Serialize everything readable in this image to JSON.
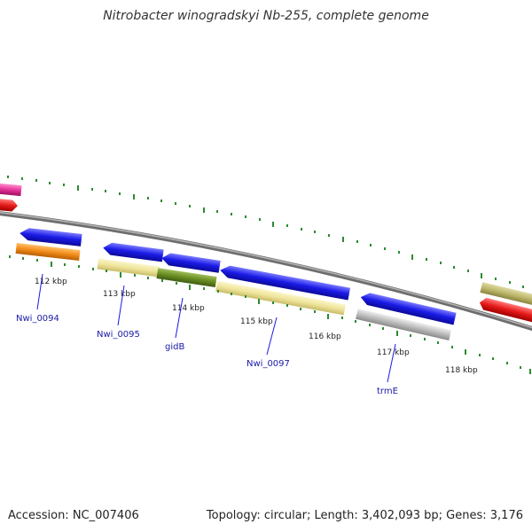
{
  "title": "Nitrobacter winogradskyi Nb-255, complete genome",
  "footer": {
    "accession": "Accession: NC_007406",
    "summary": "Topology: circular; Length: 3,402,093 bp; Genes: 3,176"
  },
  "ticks": [
    "112 kbp",
    "113 kbp",
    "114 kbp",
    "115 kbp",
    "116 kbp",
    "117 kbp",
    "118 kbp"
  ],
  "gene_labels": [
    "Nwi_0094",
    "Nwi_0095",
    "gidB",
    "Nwi_0097",
    "trmE"
  ],
  "colors": {
    "backbone": "#808080",
    "tick_green": "#2e8b2e",
    "blue": "#1a1ae6",
    "orange": "#f28c1a",
    "khaki": "#eee49a",
    "olive_green": "#6b8e23",
    "grey": "#bdbdbd",
    "red": "#e61a1a",
    "pink": "#e6349a",
    "tan": "#bdb76b",
    "label_blue": "#1a1aa6"
  }
}
